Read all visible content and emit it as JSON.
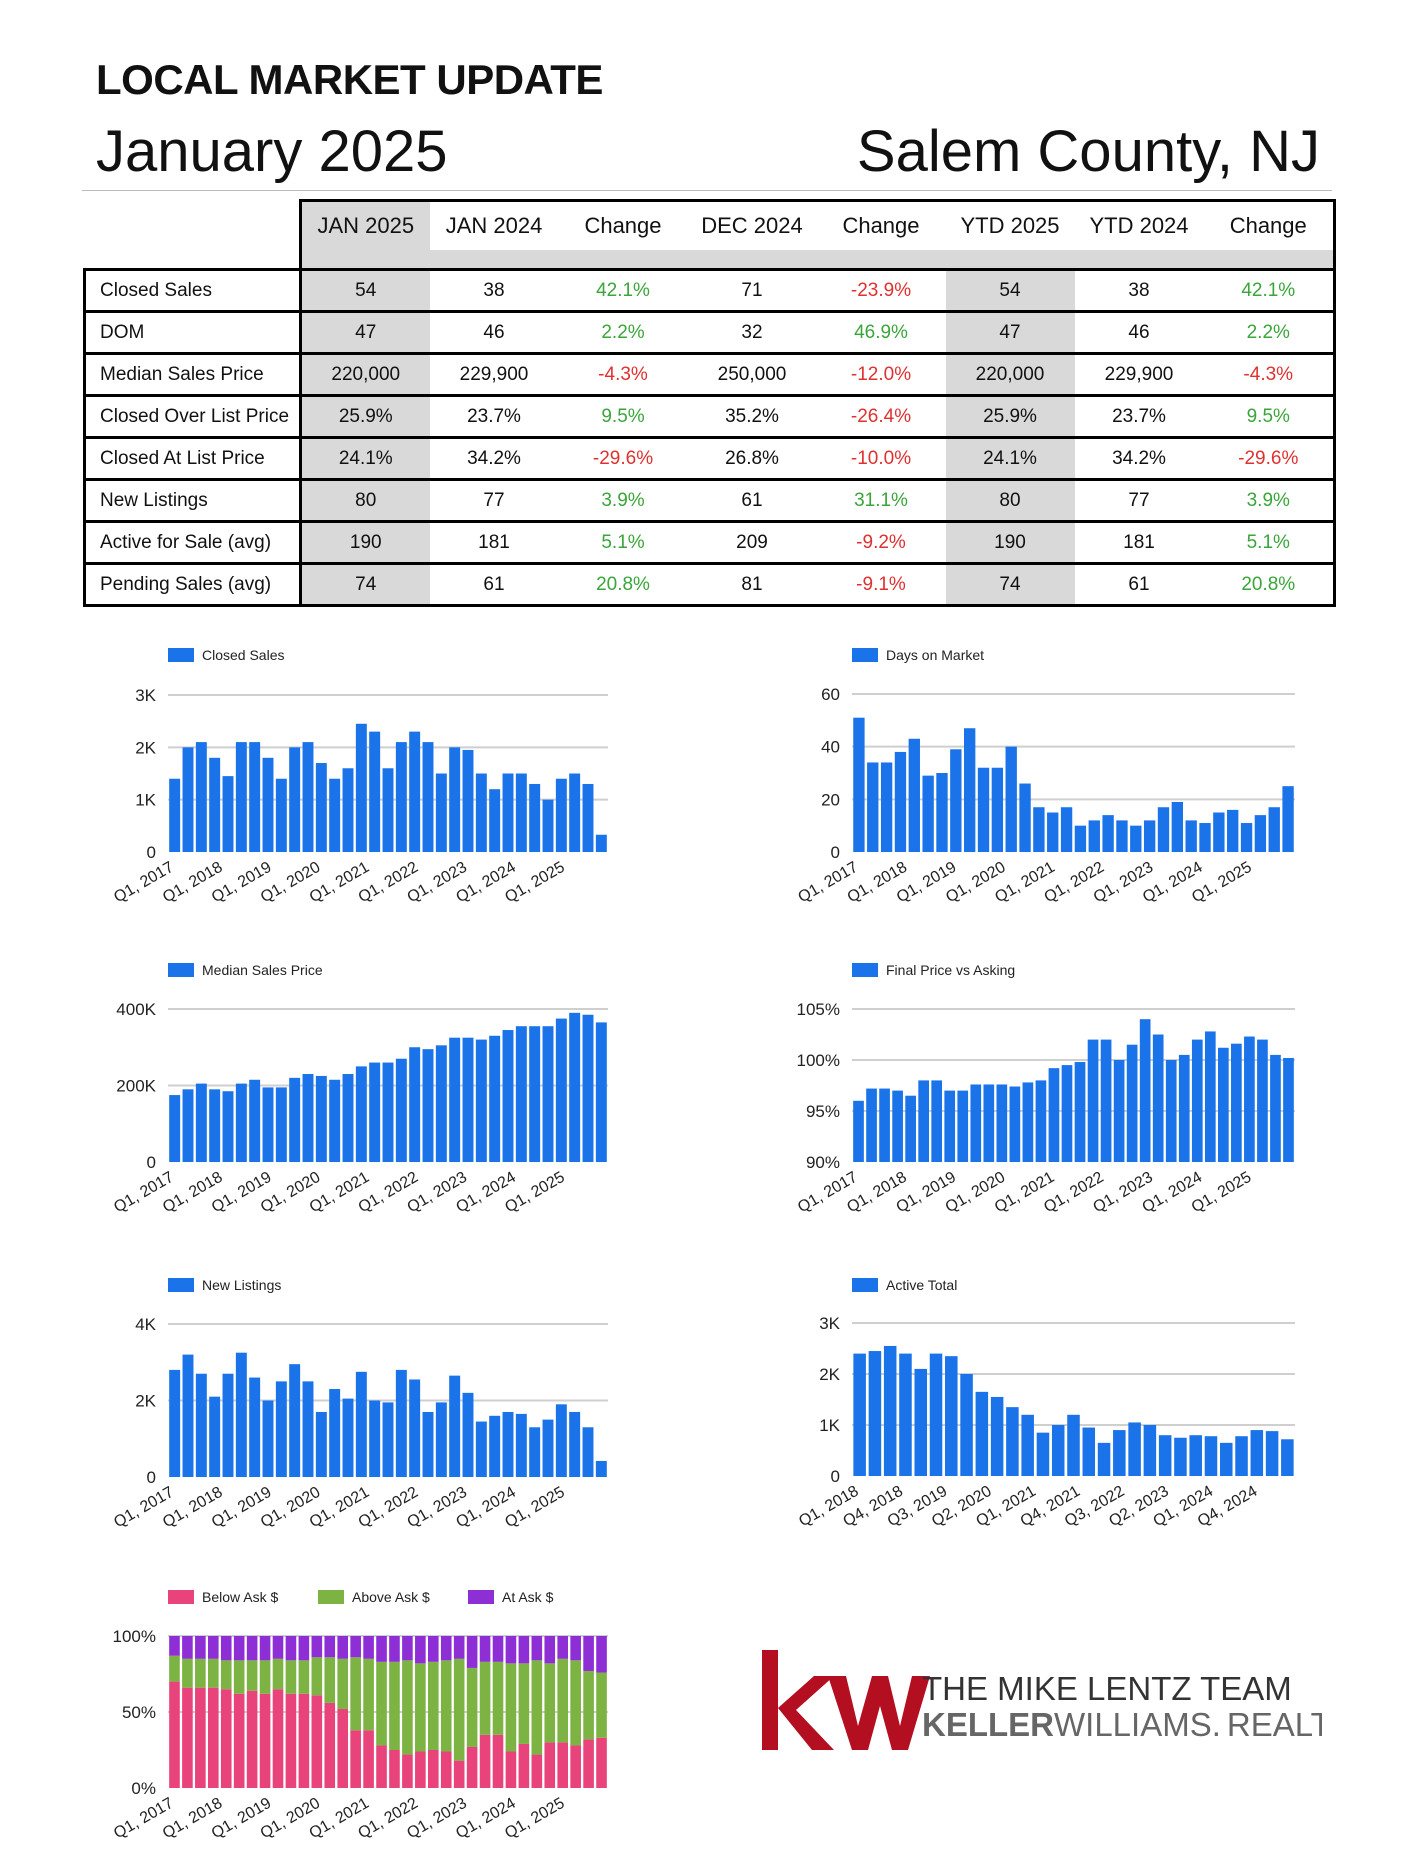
{
  "header": {
    "title": "LOCAL MARKET UPDATE",
    "month": "January 2025",
    "location": "Salem County, NJ"
  },
  "table": {
    "columns": [
      "JAN 2025",
      "JAN 2024",
      "Change",
      "DEC 2024",
      "Change",
      "YTD 2025",
      "YTD 2024",
      "Change"
    ],
    "rows": [
      {
        "label": "Closed Sales",
        "values": [
          "54",
          "38",
          "42.1%",
          "71",
          "-23.9%",
          "54",
          "38",
          "42.1%"
        ]
      },
      {
        "label": "DOM",
        "values": [
          "47",
          "46",
          "2.2%",
          "32",
          "46.9%",
          "47",
          "46",
          "2.2%"
        ]
      },
      {
        "label": "Median Sales Price",
        "values": [
          "220,000",
          "229,900",
          "-4.3%",
          "250,000",
          "-12.0%",
          "220,000",
          "229,900",
          "-4.3%"
        ]
      },
      {
        "label": "Closed Over List Price",
        "values": [
          "25.9%",
          "23.7%",
          "9.5%",
          "35.2%",
          "-26.4%",
          "25.9%",
          "23.7%",
          "9.5%"
        ]
      },
      {
        "label": "Closed At List Price",
        "values": [
          "24.1%",
          "34.2%",
          "-29.6%",
          "26.8%",
          "-10.0%",
          "24.1%",
          "34.2%",
          "-29.6%"
        ]
      },
      {
        "label": "New Listings",
        "values": [
          "80",
          "77",
          "3.9%",
          "61",
          "31.1%",
          "80",
          "77",
          "3.9%"
        ]
      },
      {
        "label": "Active for Sale (avg)",
        "values": [
          "190",
          "181",
          "5.1%",
          "209",
          "-9.2%",
          "190",
          "181",
          "5.1%"
        ]
      },
      {
        "label": "Pending Sales (avg)",
        "values": [
          "74",
          "61",
          "20.8%",
          "81",
          "-9.1%",
          "74",
          "61",
          "20.8%"
        ]
      }
    ],
    "colors": {
      "positive": "#3aa53a",
      "negative": "#e03030",
      "shade": "#d9d9d9"
    }
  },
  "chart_data": [
    {
      "id": "closed-sales",
      "type": "bar",
      "series": [
        {
          "name": "Closed Sales",
          "color": "#1a73e8",
          "values": [
            1400,
            2000,
            2100,
            1800,
            1450,
            2100,
            2100,
            1800,
            1400,
            2000,
            2100,
            1700,
            1400,
            1600,
            2450,
            2300,
            1600,
            2100,
            2300,
            2100,
            1500,
            2000,
            1950,
            1500,
            1200,
            1500,
            1500,
            1300,
            1000,
            1400,
            1500,
            1300,
            330
          ]
        }
      ],
      "y_ticks": [
        "0",
        "1K",
        "2K",
        "3K"
      ],
      "ylim": [
        0,
        3000
      ],
      "x_labels": [
        "Q1, 2017",
        "Q1, 2018",
        "Q1, 2019",
        "Q1, 2020",
        "Q1, 2021",
        "Q1, 2022",
        "Q1, 2023",
        "Q1, 2024",
        "Q1, 2025"
      ],
      "grid": true,
      "legend": "top-left"
    },
    {
      "id": "days-on-market",
      "type": "bar",
      "series": [
        {
          "name": "Days on Market",
          "color": "#1a73e8",
          "values": [
            51,
            34,
            34,
            38,
            43,
            29,
            30,
            39,
            47,
            32,
            32,
            40,
            26,
            17,
            15,
            17,
            10,
            12,
            14,
            12,
            10,
            12,
            17,
            19,
            12,
            11,
            15,
            16,
            11,
            14,
            17,
            25
          ]
        }
      ],
      "y_ticks": [
        "0",
        "20",
        "40",
        "60"
      ],
      "ylim": [
        0,
        60
      ],
      "x_labels": [
        "Q1, 2017",
        "Q1, 2018",
        "Q1, 2019",
        "Q1, 2020",
        "Q1, 2021",
        "Q1, 2022",
        "Q1, 2023",
        "Q1, 2024",
        "Q1, 2025"
      ],
      "grid": true,
      "legend": "top-left"
    },
    {
      "id": "median-sales-price",
      "type": "bar",
      "series": [
        {
          "name": "Median Sales Price",
          "color": "#1a73e8",
          "values": [
            175000,
            190000,
            205000,
            190000,
            185000,
            205000,
            215000,
            195000,
            195000,
            220000,
            230000,
            225000,
            215000,
            230000,
            250000,
            260000,
            260000,
            270000,
            300000,
            295000,
            305000,
            325000,
            325000,
            320000,
            330000,
            345000,
            355000,
            355000,
            355000,
            375000,
            390000,
            385000,
            365000
          ]
        }
      ],
      "y_ticks": [
        "0",
        "200K",
        "400K"
      ],
      "ylim": [
        0,
        400000
      ],
      "x_labels": [
        "Q1, 2017",
        "Q1, 2018",
        "Q1, 2019",
        "Q1, 2020",
        "Q1, 2021",
        "Q1, 2022",
        "Q1, 2023",
        "Q1, 2024",
        "Q1, 2025"
      ],
      "grid": true,
      "legend": "top-left"
    },
    {
      "id": "final-price-vs-asking",
      "type": "bar",
      "series": [
        {
          "name": "Final Price vs Asking",
          "color": "#1a73e8",
          "values": [
            96.0,
            97.2,
            97.2,
            97.0,
            96.5,
            98.0,
            98.0,
            97.0,
            97.0,
            97.6,
            97.6,
            97.6,
            97.4,
            97.8,
            98.0,
            99.2,
            99.5,
            99.8,
            102.0,
            102.0,
            100.0,
            101.5,
            104.0,
            102.5,
            100.0,
            100.5,
            102.0,
            102.8,
            101.2,
            101.6,
            102.3,
            102.0,
            100.5,
            100.2
          ]
        }
      ],
      "y_ticks": [
        "90%",
        "95%",
        "100%",
        "105%"
      ],
      "ylim": [
        90,
        105
      ],
      "x_labels": [
        "Q1, 2017",
        "Q1, 2018",
        "Q1, 2019",
        "Q1, 2020",
        "Q1, 2021",
        "Q1, 2022",
        "Q1, 2023",
        "Q1, 2024",
        "Q1, 2025"
      ],
      "grid": true,
      "legend": "top-left"
    },
    {
      "id": "new-listings",
      "type": "bar",
      "series": [
        {
          "name": "New Listings",
          "color": "#1a73e8",
          "values": [
            2800,
            3200,
            2700,
            2100,
            2700,
            3250,
            2600,
            2000,
            2500,
            2950,
            2500,
            1700,
            2300,
            2050,
            2750,
            2000,
            1950,
            2800,
            2550,
            1700,
            1950,
            2650,
            2200,
            1450,
            1600,
            1700,
            1650,
            1300,
            1500,
            1900,
            1700,
            1300,
            420
          ]
        }
      ],
      "y_ticks": [
        "0",
        "2K",
        "4K"
      ],
      "ylim": [
        0,
        4000
      ],
      "x_labels": [
        "Q1, 2017",
        "Q1, 2018",
        "Q1, 2019",
        "Q1, 2020",
        "Q1, 2021",
        "Q1, 2022",
        "Q1, 2023",
        "Q1, 2024",
        "Q1, 2025"
      ],
      "grid": true,
      "legend": "top-left"
    },
    {
      "id": "active-total",
      "type": "bar",
      "series": [
        {
          "name": "Active Total",
          "color": "#1a73e8",
          "values": [
            2400,
            2450,
            2550,
            2400,
            2100,
            2400,
            2350,
            2000,
            1650,
            1550,
            1350,
            1200,
            850,
            1000,
            1200,
            950,
            650,
            900,
            1050,
            1000,
            800,
            750,
            800,
            780,
            650,
            780,
            900,
            880,
            720
          ]
        }
      ],
      "y_ticks": [
        "0",
        "1K",
        "2K",
        "3K"
      ],
      "ylim": [
        0,
        3000
      ],
      "x_labels": [
        "Q1, 2018",
        "Q4, 2018",
        "Q3, 2019",
        "Q2, 2020",
        "Q1, 2021",
        "Q4, 2021",
        "Q3, 2022",
        "Q2, 2023",
        "Q1, 2024",
        "Q4, 2024"
      ],
      "grid": true,
      "legend": "top-left"
    },
    {
      "id": "ask-stacked",
      "type": "bar",
      "stacked": true,
      "series": [
        {
          "name": "Below Ask $",
          "color": "#e8437a",
          "values": [
            70,
            66,
            66,
            66,
            65,
            62,
            64,
            62,
            65,
            62,
            62,
            61,
            56,
            52,
            38,
            38,
            28,
            25,
            22,
            24,
            25,
            24,
            18,
            27,
            35,
            35,
            24,
            29,
            22,
            30,
            30,
            28,
            32,
            33
          ]
        },
        {
          "name": "Above Ask $",
          "color": "#7cb342",
          "values": [
            17,
            19,
            19,
            19,
            19,
            22,
            20,
            22,
            20,
            22,
            22,
            25,
            30,
            33,
            48,
            47,
            55,
            58,
            62,
            58,
            58,
            60,
            67,
            52,
            48,
            48,
            58,
            53,
            62,
            52,
            55,
            56,
            45,
            43
          ]
        },
        {
          "name": "At Ask $",
          "color": "#8e2fd6",
          "values": [
            13,
            15,
            15,
            15,
            16,
            16,
            16,
            16,
            15,
            16,
            16,
            14,
            14,
            15,
            14,
            15,
            17,
            17,
            16,
            18,
            17,
            16,
            15,
            21,
            17,
            17,
            18,
            18,
            16,
            18,
            15,
            16,
            23,
            24
          ]
        }
      ],
      "y_ticks": [
        "0%",
        "50%",
        "100%"
      ],
      "ylim": [
        0,
        100
      ],
      "x_labels": [
        "Q1, 2017",
        "Q1, 2018",
        "Q1, 2019",
        "Q1, 2020",
        "Q1, 2021",
        "Q1, 2022",
        "Q1, 2023",
        "Q1, 2024",
        "Q1, 2025"
      ],
      "grid": true,
      "legend": "top-left"
    }
  ],
  "branding": {
    "team": "THE MIKE LENTZ TEAM",
    "brokerage_bold": "KELLER",
    "brokerage_light": "WILLIAMS.",
    "brokerage_suffix": "REALTY",
    "logo_color": "#b40f20"
  }
}
